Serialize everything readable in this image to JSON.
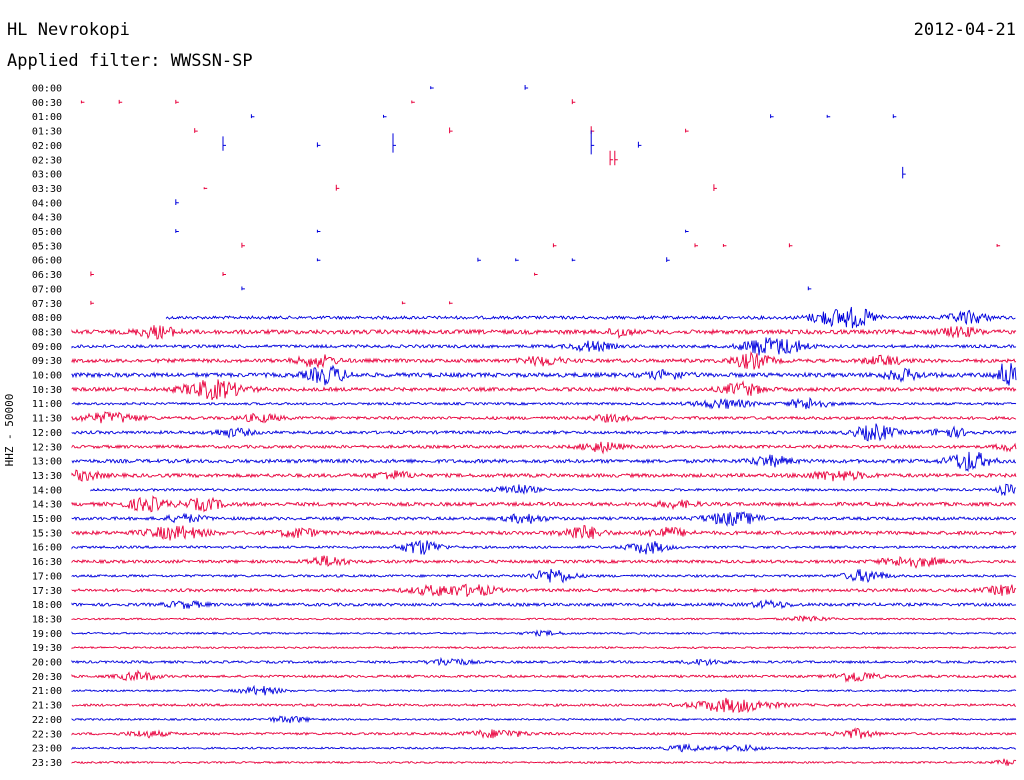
{
  "header": {
    "station": "HL Nevrokopi",
    "date": "2012-04-21",
    "filter": "Applied filter: WWSSN-SP"
  },
  "chart_data": {
    "type": "line",
    "title": "HL Nevrokopi",
    "subtitle": "Applied filter: WWSSN-SP",
    "ylabel": "HHZ - 50000",
    "colors": {
      "odd": "#e8003c",
      "even": "#0000dd"
    },
    "grid": false,
    "rows": [
      {
        "label": "00:00",
        "active": false,
        "events": [
          [
            0.38,
            0.3
          ],
          [
            0.48,
            0.5
          ]
        ]
      },
      {
        "label": "00:30",
        "active": false,
        "events": [
          [
            0.01,
            0.3
          ],
          [
            0.05,
            0.4
          ],
          [
            0.11,
            0.4
          ],
          [
            0.36,
            0.3
          ],
          [
            0.53,
            0.5
          ]
        ]
      },
      {
        "label": "01:00",
        "active": false,
        "events": [
          [
            0.19,
            0.4
          ],
          [
            0.33,
            0.3
          ],
          [
            0.74,
            0.4
          ],
          [
            0.8,
            0.3
          ],
          [
            0.87,
            0.4
          ]
        ]
      },
      {
        "label": "01:30",
        "active": false,
        "events": [
          [
            0.13,
            0.5
          ],
          [
            0.4,
            0.6
          ],
          [
            0.55,
            0.8
          ],
          [
            0.65,
            0.4
          ]
        ]
      },
      {
        "label": "02:00",
        "active": false,
        "events": [
          [
            0.16,
            1.5
          ],
          [
            0.26,
            0.5
          ],
          [
            0.34,
            2.0
          ],
          [
            0.55,
            2.5
          ],
          [
            0.6,
            0.6
          ]
        ]
      },
      {
        "label": "02:30",
        "active": false,
        "events": [
          [
            0.57,
            1.5
          ],
          [
            0.575,
            1.5
          ]
        ]
      },
      {
        "label": "03:00",
        "active": false,
        "events": [
          [
            0.88,
            1.2
          ]
        ]
      },
      {
        "label": "03:30",
        "active": false,
        "events": [
          [
            0.14,
            0.2
          ],
          [
            0.28,
            0.6
          ],
          [
            0.68,
            0.7
          ]
        ]
      },
      {
        "label": "04:00",
        "active": false,
        "events": [
          [
            0.11,
            0.6
          ]
        ]
      },
      {
        "label": "04:30",
        "active": false,
        "events": []
      },
      {
        "label": "05:00",
        "active": false,
        "events": [
          [
            0.11,
            0.4
          ],
          [
            0.26,
            0.3
          ],
          [
            0.65,
            0.3
          ]
        ]
      },
      {
        "label": "05:30",
        "active": false,
        "events": [
          [
            0.18,
            0.5
          ],
          [
            0.51,
            0.4
          ],
          [
            0.66,
            0.4
          ],
          [
            0.69,
            0.3
          ],
          [
            0.76,
            0.4
          ],
          [
            0.98,
            0.3
          ]
        ]
      },
      {
        "label": "06:00",
        "active": false,
        "events": [
          [
            0.26,
            0.3
          ],
          [
            0.43,
            0.4
          ],
          [
            0.47,
            0.3
          ],
          [
            0.53,
            0.3
          ],
          [
            0.63,
            0.5
          ]
        ]
      },
      {
        "label": "06:30",
        "active": false,
        "events": [
          [
            0.02,
            0.5
          ],
          [
            0.16,
            0.4
          ],
          [
            0.49,
            0.3
          ]
        ]
      },
      {
        "label": "07:00",
        "active": false,
        "events": [
          [
            0.18,
            0.4
          ],
          [
            0.78,
            0.4
          ]
        ]
      },
      {
        "label": "07:30",
        "active": false,
        "events": [
          [
            0.02,
            0.4
          ],
          [
            0.35,
            0.3
          ],
          [
            0.4,
            0.3
          ]
        ]
      },
      {
        "label": "08:00",
        "active": true,
        "start": 0.1,
        "noise": 0.25,
        "bursts": [
          [
            0.8,
            0.02,
            1.0
          ],
          [
            0.83,
            0.02,
            1.5
          ],
          [
            0.95,
            0.02,
            1.0
          ]
        ]
      },
      {
        "label": "08:30",
        "active": true,
        "start": 0.0,
        "noise": 0.35,
        "bursts": [
          [
            0.09,
            0.02,
            0.9
          ],
          [
            0.58,
            0.01,
            0.8
          ],
          [
            0.94,
            0.02,
            0.7
          ]
        ]
      },
      {
        "label": "09:00",
        "active": true,
        "start": 0.0,
        "noise": 0.25,
        "bursts": [
          [
            0.55,
            0.02,
            0.8
          ],
          [
            0.73,
            0.02,
            1.3
          ],
          [
            0.76,
            0.02,
            1.0
          ]
        ]
      },
      {
        "label": "09:30",
        "active": true,
        "start": 0.0,
        "noise": 0.3,
        "bursts": [
          [
            0.26,
            0.02,
            0.9
          ],
          [
            0.5,
            0.02,
            0.7
          ],
          [
            0.72,
            0.02,
            1.2
          ],
          [
            0.86,
            0.02,
            0.7
          ]
        ]
      },
      {
        "label": "10:00",
        "active": true,
        "start": 0.0,
        "noise": 0.35,
        "bursts": [
          [
            0.27,
            0.02,
            1.4
          ],
          [
            0.63,
            0.02,
            0.6
          ],
          [
            0.88,
            0.02,
            0.8
          ],
          [
            0.99,
            0.01,
            2.2
          ]
        ]
      },
      {
        "label": "10:30",
        "active": true,
        "start": 0.0,
        "noise": 0.3,
        "bursts": [
          [
            0.15,
            0.03,
            1.5
          ],
          [
            0.71,
            0.02,
            1.0
          ]
        ]
      },
      {
        "label": "11:00",
        "active": true,
        "start": 0.0,
        "noise": 0.2,
        "bursts": [
          [
            0.69,
            0.03,
            0.7
          ],
          [
            0.78,
            0.02,
            0.9
          ]
        ]
      },
      {
        "label": "11:30",
        "active": true,
        "start": 0.0,
        "noise": 0.25,
        "bursts": [
          [
            0.04,
            0.03,
            0.8
          ],
          [
            0.2,
            0.02,
            0.6
          ],
          [
            0.57,
            0.02,
            0.5
          ]
        ]
      },
      {
        "label": "12:00",
        "active": true,
        "start": 0.0,
        "noise": 0.25,
        "bursts": [
          [
            0.17,
            0.02,
            0.6
          ],
          [
            0.85,
            0.02,
            1.3
          ],
          [
            0.93,
            0.02,
            0.7
          ]
        ]
      },
      {
        "label": "12:30",
        "active": true,
        "start": 0.0,
        "noise": 0.25,
        "bursts": [
          [
            0.56,
            0.02,
            0.8
          ],
          [
            0.99,
            0.01,
            0.6
          ]
        ]
      },
      {
        "label": "13:00",
        "active": true,
        "start": 0.0,
        "noise": 0.3,
        "bursts": [
          [
            0.74,
            0.02,
            0.8
          ],
          [
            0.95,
            0.02,
            1.6
          ]
        ]
      },
      {
        "label": "13:30",
        "active": true,
        "start": 0.0,
        "noise": 0.3,
        "bursts": [
          [
            0.01,
            0.02,
            0.7
          ],
          [
            0.34,
            0.02,
            0.6
          ],
          [
            0.81,
            0.03,
            0.7
          ]
        ]
      },
      {
        "label": "14:00",
        "active": true,
        "start": 0.02,
        "noise": 0.2,
        "bursts": [
          [
            0.47,
            0.02,
            0.8
          ],
          [
            0.99,
            0.01,
            0.8
          ]
        ]
      },
      {
        "label": "14:30",
        "active": true,
        "start": 0.0,
        "noise": 0.3,
        "bursts": [
          [
            0.08,
            0.02,
            1.1
          ],
          [
            0.14,
            0.02,
            0.9
          ],
          [
            0.64,
            0.02,
            0.5
          ]
        ]
      },
      {
        "label": "15:00",
        "active": true,
        "start": 0.0,
        "noise": 0.25,
        "bursts": [
          [
            0.12,
            0.02,
            0.6
          ],
          [
            0.48,
            0.02,
            0.7
          ],
          [
            0.7,
            0.03,
            1.0
          ]
        ]
      },
      {
        "label": "15:30",
        "active": true,
        "start": 0.0,
        "noise": 0.3,
        "bursts": [
          [
            0.11,
            0.03,
            1.0
          ],
          [
            0.24,
            0.02,
            0.7
          ],
          [
            0.54,
            0.02,
            1.1
          ],
          [
            0.63,
            0.02,
            0.8
          ]
        ]
      },
      {
        "label": "16:00",
        "active": true,
        "start": 0.0,
        "noise": 0.2,
        "bursts": [
          [
            0.37,
            0.02,
            1.2
          ],
          [
            0.61,
            0.02,
            1.0
          ]
        ]
      },
      {
        "label": "16:30",
        "active": true,
        "start": 0.0,
        "noise": 0.25,
        "bursts": [
          [
            0.27,
            0.02,
            0.8
          ],
          [
            0.89,
            0.03,
            0.8
          ]
        ]
      },
      {
        "label": "17:00",
        "active": true,
        "start": 0.0,
        "noise": 0.2,
        "bursts": [
          [
            0.51,
            0.02,
            1.2
          ],
          [
            0.84,
            0.02,
            1.0
          ]
        ]
      },
      {
        "label": "17:30",
        "active": true,
        "start": 0.0,
        "noise": 0.25,
        "bursts": [
          [
            0.39,
            0.03,
            0.8
          ],
          [
            0.43,
            0.02,
            0.7
          ],
          [
            0.99,
            0.02,
            0.8
          ]
        ]
      },
      {
        "label": "18:00",
        "active": true,
        "start": 0.0,
        "noise": 0.25,
        "bursts": [
          [
            0.12,
            0.02,
            0.5
          ],
          [
            0.74,
            0.02,
            0.5
          ]
        ]
      },
      {
        "label": "18:30",
        "active": true,
        "start": 0.0,
        "noise": 0.15,
        "bursts": [
          [
            0.78,
            0.02,
            0.4
          ]
        ]
      },
      {
        "label": "19:00",
        "active": true,
        "start": 0.0,
        "noise": 0.15,
        "bursts": [
          [
            0.5,
            0.02,
            0.3
          ]
        ]
      },
      {
        "label": "19:30",
        "active": true,
        "start": 0.0,
        "noise": 0.15,
        "bursts": []
      },
      {
        "label": "20:00",
        "active": true,
        "start": 0.0,
        "noise": 0.2,
        "bursts": [
          [
            0.4,
            0.02,
            0.6
          ],
          [
            0.67,
            0.02,
            0.4
          ]
        ]
      },
      {
        "label": "20:30",
        "active": true,
        "start": 0.0,
        "noise": 0.2,
        "bursts": [
          [
            0.07,
            0.02,
            0.7
          ],
          [
            0.83,
            0.02,
            0.9
          ]
        ]
      },
      {
        "label": "21:00",
        "active": true,
        "start": 0.0,
        "noise": 0.15,
        "bursts": [
          [
            0.2,
            0.02,
            0.7
          ]
        ]
      },
      {
        "label": "21:30",
        "active": true,
        "start": 0.0,
        "noise": 0.2,
        "bursts": [
          [
            0.7,
            0.04,
            1.1
          ]
        ]
      },
      {
        "label": "22:00",
        "active": true,
        "start": 0.0,
        "noise": 0.15,
        "bursts": [
          [
            0.23,
            0.02,
            0.5
          ]
        ]
      },
      {
        "label": "22:30",
        "active": true,
        "start": 0.0,
        "noise": 0.2,
        "bursts": [
          [
            0.08,
            0.02,
            0.5
          ],
          [
            0.45,
            0.03,
            0.6
          ],
          [
            0.83,
            0.02,
            0.7
          ]
        ]
      },
      {
        "label": "23:00",
        "active": true,
        "start": 0.0,
        "noise": 0.15,
        "bursts": [
          [
            0.65,
            0.02,
            0.5
          ],
          [
            0.71,
            0.02,
            0.5
          ]
        ]
      },
      {
        "label": "23:30",
        "active": true,
        "start": 0.0,
        "noise": 0.15,
        "bursts": [
          [
            0.99,
            0.01,
            0.6
          ]
        ]
      }
    ]
  }
}
